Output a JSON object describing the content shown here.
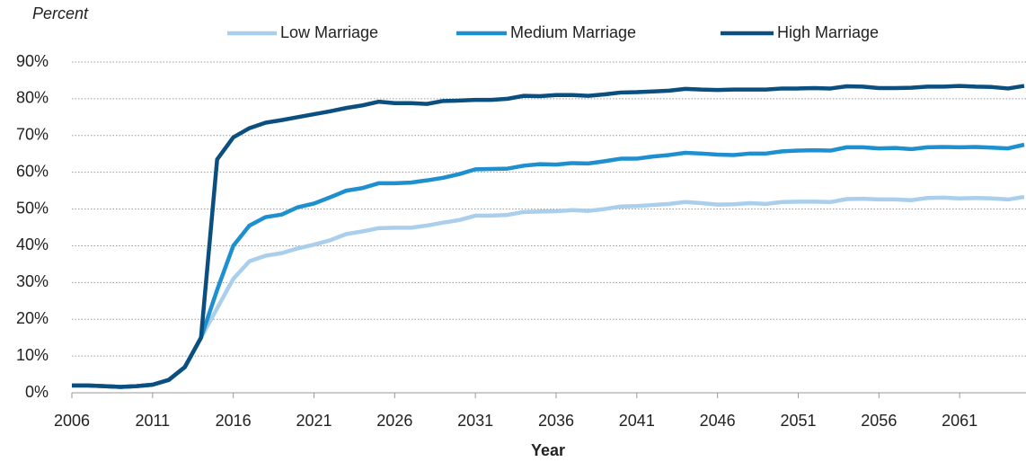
{
  "chart_data": {
    "type": "line",
    "y_label": "Percent",
    "x_label": "Year",
    "legend": "top",
    "grid": true,
    "x": [
      2006,
      2007,
      2008,
      2009,
      2010,
      2011,
      2012,
      2013,
      2014,
      2015,
      2016,
      2017,
      2018,
      2019,
      2020,
      2021,
      2022,
      2023,
      2024,
      2025,
      2026,
      2027,
      2028,
      2029,
      2030,
      2031,
      2032,
      2033,
      2034,
      2035,
      2036,
      2037,
      2038,
      2039,
      2040,
      2041,
      2042,
      2043,
      2044,
      2045,
      2046,
      2047,
      2048,
      2049,
      2050,
      2051,
      2052,
      2053,
      2054,
      2055,
      2056,
      2057,
      2058,
      2059,
      2060,
      2061,
      2062,
      2063,
      2064,
      2065
    ],
    "xlim": [
      2006,
      2065
    ],
    "xticks": [
      2006,
      2011,
      2016,
      2021,
      2026,
      2031,
      2036,
      2041,
      2046,
      2051,
      2056,
      2061
    ],
    "ylim": [
      0,
      90
    ],
    "yticks": [
      {
        "value": 0,
        "label": "0%"
      },
      {
        "value": 10,
        "label": "10%"
      },
      {
        "value": 20,
        "label": "20%"
      },
      {
        "value": 30,
        "label": "30%"
      },
      {
        "value": 40,
        "label": "40%"
      },
      {
        "value": 50,
        "label": "50%"
      },
      {
        "value": 60,
        "label": "60%"
      },
      {
        "value": 70,
        "label": "70%"
      },
      {
        "value": 80,
        "label": "80%"
      },
      {
        "value": 90,
        "label": "90%"
      }
    ],
    "series": [
      {
        "name": "Low Marriage",
        "color": "#a9cfec",
        "values": [
          2.0,
          2.0,
          1.8,
          1.6,
          1.8,
          2.2,
          3.5,
          7,
          15,
          23,
          31,
          35.8,
          37.3,
          38,
          39.3,
          40.3,
          41.5,
          43.2,
          43.9,
          44.8,
          44.9,
          44.9,
          45.5,
          46.3,
          47,
          48.2,
          48.2,
          48.4,
          49.2,
          49.3,
          49.4,
          49.7,
          49.5,
          50,
          50.7,
          50.8,
          51.1,
          51.4,
          51.9,
          51.6,
          51.2,
          51.3,
          51.6,
          51.4,
          51.9,
          52,
          52,
          51.9,
          52.7,
          52.8,
          52.6,
          52.6,
          52.4,
          53,
          53.1,
          52.9,
          53,
          52.9,
          52.6,
          53.3
        ]
      },
      {
        "name": "Medium Marriage",
        "color": "#1e90d0",
        "values": [
          2.0,
          2.0,
          1.8,
          1.6,
          1.8,
          2.2,
          3.5,
          7,
          15,
          28,
          40,
          45.5,
          47.8,
          48.5,
          50.5,
          51.5,
          53.2,
          55,
          55.7,
          57,
          57,
          57.2,
          57.8,
          58.5,
          59.5,
          60.8,
          60.9,
          61,
          61.8,
          62.2,
          62.1,
          62.5,
          62.4,
          63,
          63.7,
          63.7,
          64.3,
          64.7,
          65.3,
          65.1,
          64.8,
          64.7,
          65.1,
          65.1,
          65.7,
          65.9,
          66,
          65.9,
          66.8,
          66.8,
          66.5,
          66.6,
          66.3,
          66.8,
          66.9,
          66.8,
          66.9,
          66.7,
          66.5,
          67.5
        ]
      },
      {
        "name": "High Marriage",
        "color": "#0a4f80",
        "values": [
          2.0,
          2.0,
          1.8,
          1.6,
          1.8,
          2.2,
          3.5,
          7,
          15,
          63.5,
          69.5,
          72,
          73.5,
          74.2,
          75,
          75.8,
          76.6,
          77.5,
          78.2,
          79.2,
          78.8,
          78.8,
          78.6,
          79.4,
          79.5,
          79.7,
          79.7,
          80,
          80.8,
          80.7,
          81,
          81,
          80.8,
          81.2,
          81.7,
          81.8,
          82,
          82.2,
          82.7,
          82.5,
          82.4,
          82.5,
          82.5,
          82.5,
          82.8,
          82.8,
          82.9,
          82.8,
          83.4,
          83.3,
          82.9,
          82.9,
          83,
          83.3,
          83.3,
          83.5,
          83.3,
          83.2,
          82.8,
          83.5
        ]
      }
    ]
  }
}
